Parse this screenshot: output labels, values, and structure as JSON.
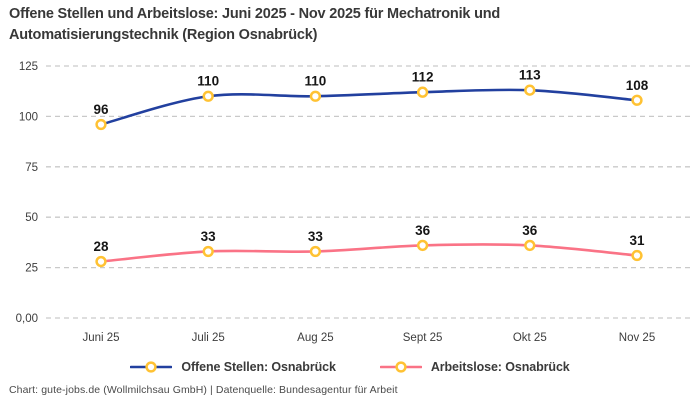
{
  "title": "Offene Stellen und Arbeitslose: Juni 2025 - Nov 2025 für Mechatronik und Automatisierungstechnik (Region Osnabrück)",
  "footer": "Chart: gute-jobs.de (Wollmilchsau GmbH) | Datenquelle: Bundesagentur für Arbeit",
  "colors": {
    "blue": "#22409f",
    "pink": "#fa7386",
    "marker_ring": "#ffc233",
    "marker_fill": "#ffffff",
    "grid": "#c9c9c9",
    "axis_text": "#3d3d3d",
    "data_label_text": "#161616"
  },
  "chart_data": {
    "type": "line",
    "title": "Offene Stellen und Arbeitslose: Juni 2025 - Nov 2025 für Mechatronik und Automatisierungstechnik (Region Osnabrück)",
    "categories": [
      "Juni 25",
      "Juli 25",
      "Aug 25",
      "Sept 25",
      "Okt 25",
      "Nov 25"
    ],
    "series": [
      {
        "name": "Offene Stellen: Osnabrück",
        "color_key": "blue",
        "values": [
          96,
          110,
          110,
          112,
          113,
          108
        ]
      },
      {
        "name": "Arbeitslose: Osnabrück",
        "color_key": "pink",
        "values": [
          28,
          33,
          33,
          36,
          36,
          31
        ]
      }
    ],
    "yticks": [
      0,
      25,
      50,
      75,
      100,
      125
    ],
    "ytick_labels": [
      "0,00",
      "25",
      "50",
      "75",
      "100",
      "125"
    ],
    "ylim": [
      0,
      130
    ],
    "xlabel": "",
    "ylabel": "",
    "grid": "horizontal-dashed",
    "legend_position": "bottom",
    "marker": "ring",
    "data_labels": true
  }
}
